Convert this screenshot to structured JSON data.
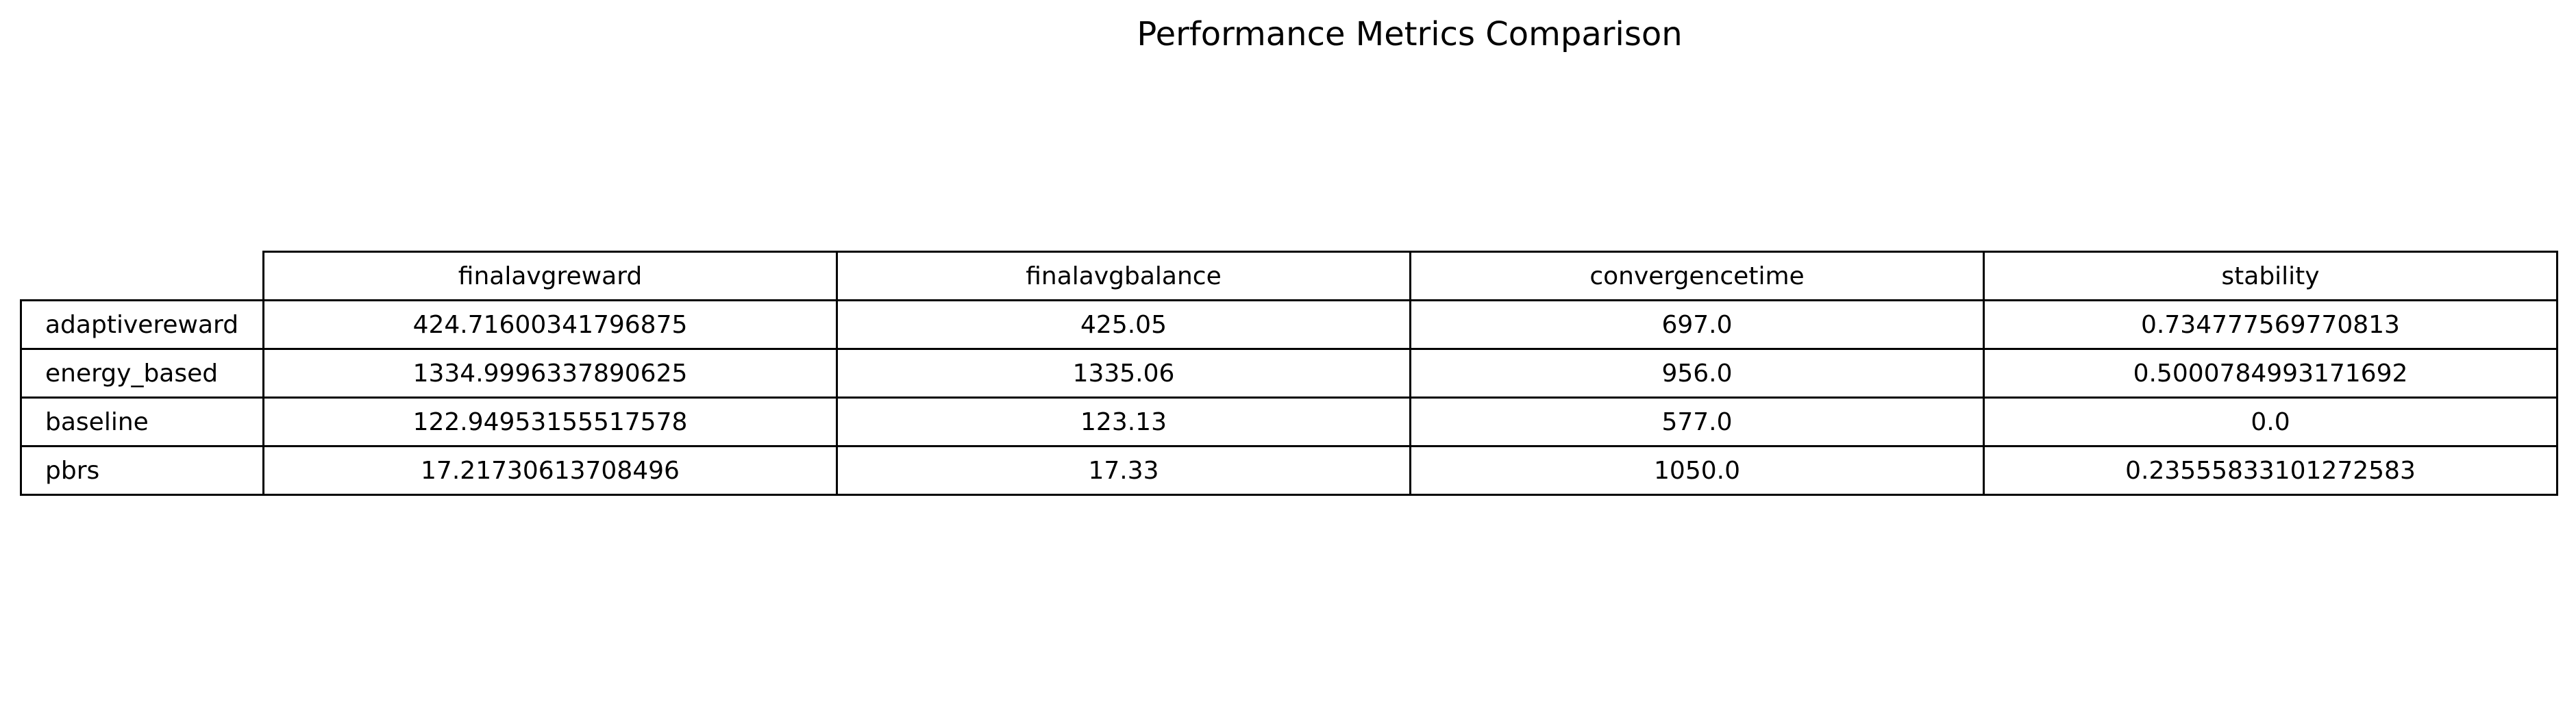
{
  "chart_data": {
    "type": "table",
    "title": "Performance Metrics Comparison",
    "columns": [
      "finalavgreward",
      "finalavgbalance",
      "convergencetime",
      "stability"
    ],
    "rows": [
      {
        "label": "adaptivereward",
        "values": [
          "424.71600341796875",
          "425.05",
          "697.0",
          "0.734777569770813"
        ]
      },
      {
        "label": "energy_based",
        "values": [
          "1334.9996337890625",
          "1335.06",
          "956.0",
          "0.5000784993171692"
        ]
      },
      {
        "label": "baseline",
        "values": [
          "122.94953155517578",
          "123.13",
          "577.0",
          "0.0"
        ]
      },
      {
        "label": "pbrs",
        "values": [
          "17.21730613708496",
          "17.33",
          "1050.0",
          "0.23555833101272583"
        ]
      }
    ]
  }
}
